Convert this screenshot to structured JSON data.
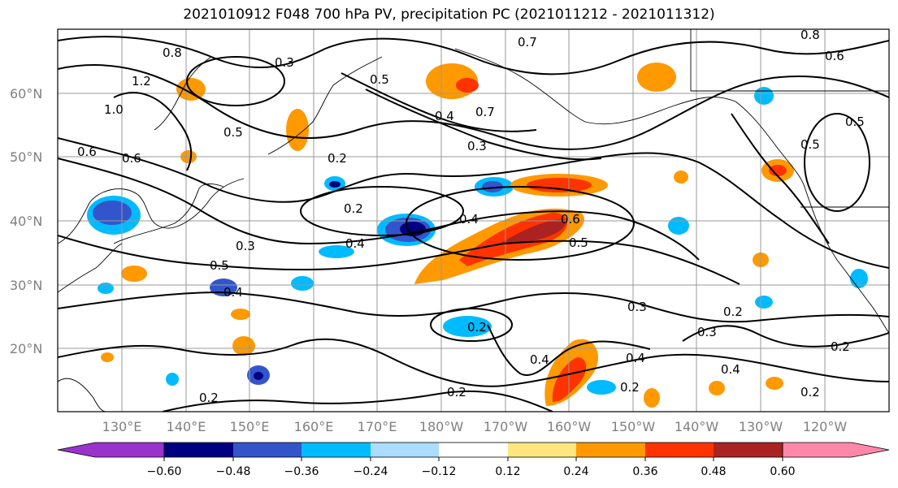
{
  "title": "2021010912 F048 700 hPa PV, precipitation PC (2021011212 - 2021011312)",
  "map": {
    "lat_labels": [
      "60°N",
      "50°N",
      "40°N",
      "30°N",
      "20°N"
    ],
    "lon_labels": [
      "130°E",
      "140°E",
      "150°E",
      "160°E",
      "170°E",
      "180°W",
      "170°W",
      "160°W",
      "150°W",
      "140°W",
      "130°W",
      "120°W"
    ],
    "contour_labels": [
      "0.3",
      "0.7",
      "0.6",
      "0.6",
      "0.5",
      "0.5",
      "0.4",
      "0.3",
      "0.2",
      "0.2",
      "0.4",
      "0.4",
      "0.6",
      "0.5",
      "0.3",
      "0.5",
      "0.4",
      "0.3",
      "0.2",
      "0.3",
      "0.2",
      "0.4",
      "0.4",
      "0.2",
      "0.2",
      "0.2",
      "0.2",
      "0.2",
      "0.5",
      "0.5",
      "0.8",
      "0.6",
      "0.8",
      "1.2",
      "1.0",
      "0.7",
      "0.4"
    ]
  },
  "colorbar": {
    "ticks": [
      "−0.60",
      "−0.48",
      "−0.36",
      "−0.24",
      "−0.12",
      "0.12",
      "0.24",
      "0.36",
      "0.48",
      "0.60"
    ],
    "colors": [
      "#9933cc",
      "#000080",
      "#3355cc",
      "#00bbff",
      "#aaddff",
      "#ffffff",
      "#ffe680",
      "#ff9900",
      "#ff3300",
      "#aa2222",
      "#ff88aa"
    ]
  }
}
